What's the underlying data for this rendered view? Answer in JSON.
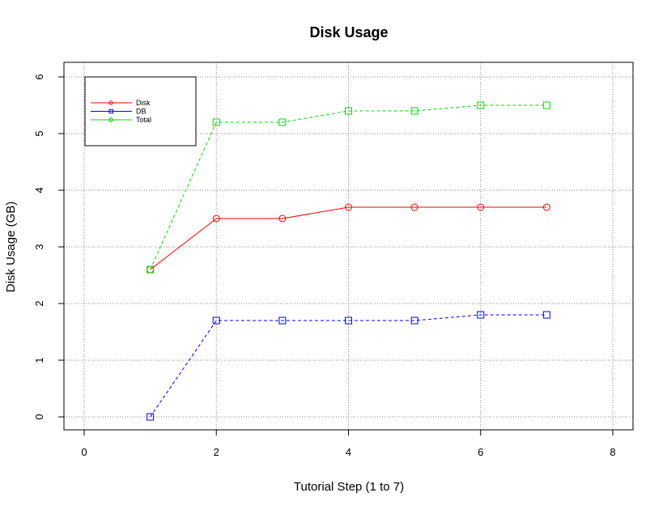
{
  "chart_data": {
    "type": "line",
    "title": "Disk Usage",
    "xlabel": "Tutorial Step (1 to 7)",
    "ylabel": "Disk Usage (GB)",
    "xlim": [
      0,
      8
    ],
    "ylim": [
      0,
      6
    ],
    "xticks": [
      0,
      2,
      4,
      6,
      8
    ],
    "yticks": [
      0,
      1,
      2,
      3,
      4,
      5,
      6
    ],
    "grid": true,
    "legend_position": "top-left",
    "series": [
      {
        "name": "Disk",
        "color": "#ff0000",
        "line_style": "solid",
        "marker": "circle",
        "x": [
          1,
          2,
          3,
          4,
          5,
          6,
          7
        ],
        "y": [
          2.6,
          3.5,
          3.5,
          3.7,
          3.7,
          3.7,
          3.7
        ]
      },
      {
        "name": "DB",
        "color": "#0000ff",
        "line_style": "dashed",
        "marker": "square",
        "x": [
          1,
          2,
          3,
          4,
          5,
          6,
          7
        ],
        "y": [
          0.0,
          1.7,
          1.7,
          1.7,
          1.7,
          1.8,
          1.8
        ]
      },
      {
        "name": "Total",
        "color": "#00dd00",
        "line_style": "dashed",
        "marker": "square",
        "x": [
          1,
          2,
          3,
          4,
          5,
          6,
          7
        ],
        "y": [
          2.6,
          5.2,
          5.2,
          5.4,
          5.4,
          5.5,
          5.5
        ]
      }
    ]
  }
}
